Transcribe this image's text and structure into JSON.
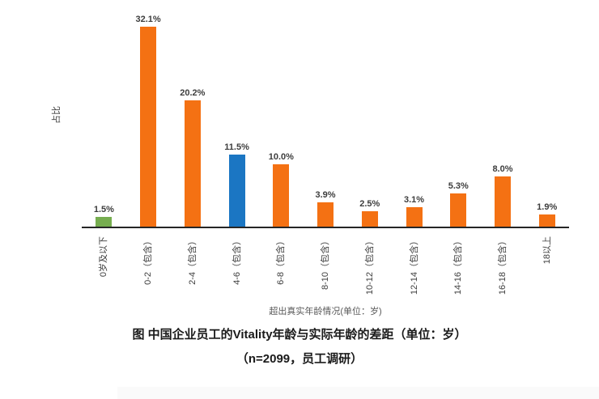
{
  "chart_data": {
    "type": "bar",
    "title": "图 中国企业员工的Vitality年龄与实际年龄的差距（单位：岁）",
    "subtitle": "（n=2099，员工调研）",
    "xlabel": "超出真实年龄情况(单位：岁)",
    "ylabel": "占比",
    "categories": [
      "0岁及以下",
      "0-2（包含）",
      "2-4（包含）",
      "4-6（包含）",
      "6-8（包含）",
      "8-10（包含）",
      "10-12（包含）",
      "12-14（包含）",
      "14-16（包含）",
      "16-18（包含）",
      "18以上"
    ],
    "values": [
      1.5,
      32.1,
      20.2,
      11.5,
      10.0,
      3.9,
      2.5,
      3.1,
      5.3,
      8.0,
      1.9
    ],
    "value_labels": [
      "1.5%",
      "32.1%",
      "20.2%",
      "11.5%",
      "10.0%",
      "3.9%",
      "2.5%",
      "3.1%",
      "5.3%",
      "8.0%",
      "1.9%"
    ],
    "bar_colors": [
      "#76AD4F",
      "#F47113",
      "#F47113",
      "#1B76C3",
      "#F47113",
      "#F47113",
      "#F47113",
      "#F47113",
      "#F47113",
      "#F47113",
      "#F47113"
    ],
    "ylim": [
      0,
      34
    ],
    "grid": false,
    "legend_position": "none"
  },
  "colors": {
    "orange": "#F47113",
    "blue": "#1B76C3",
    "green": "#76AD4F",
    "axis_line": "#262626",
    "label_text": "#3d3d3d",
    "axis_title_text": "#595959",
    "caption_text": "#1a1a1a"
  }
}
